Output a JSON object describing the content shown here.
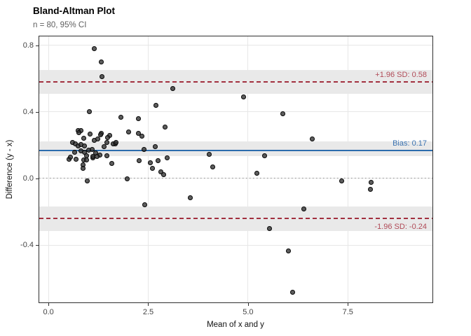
{
  "header": {
    "title": "Bland-Altman Plot",
    "subtitle": "n = 80, 95% CI"
  },
  "chart_data": {
    "type": "scatter",
    "title": "Bland-Altman Plot",
    "subtitle": "n = 80, 95% CI",
    "xlabel": "Mean of x and y",
    "ylabel": "Difference (y - x)",
    "xlim": [
      -0.23,
      9.62
    ],
    "ylim": [
      -0.745,
      0.854
    ],
    "grid": true,
    "xticks": {
      "values": [
        0,
        2.5,
        5,
        7.5
      ],
      "labels": [
        "0.0",
        "2.5",
        "5.0",
        "7.5"
      ]
    },
    "yticks": {
      "values": [
        -0.4,
        0,
        0.4,
        0.8
      ],
      "labels": [
        "-0.4",
        "0.0",
        "0.4",
        "0.8"
      ]
    },
    "zero_line": {
      "value": 0,
      "style": "dotted",
      "color": "#8a8a8a"
    },
    "ci_band_color": "#e9e9e9",
    "point_color": "#303030",
    "reference_lines": [
      {
        "name": "upper_loa",
        "value": 0.58,
        "label": "+1.96 SD: 0.58",
        "style": "dashed",
        "color": "#A2303F",
        "label_color": "#B04A57",
        "ci": [
          0.51,
          0.65
        ],
        "label_position": "above"
      },
      {
        "name": "bias",
        "value": 0.17,
        "label": "Bias: 0.17",
        "style": "solid",
        "color": "#2B6CAD",
        "label_color": "#3A72B0",
        "ci": [
          0.134,
          0.222
        ],
        "label_position": "above"
      },
      {
        "name": "lower_loa",
        "value": -0.24,
        "label": "-1.96 SD: -0.24",
        "style": "dashed",
        "color": "#A2303F",
        "label_color": "#B04A57",
        "ci": [
          -0.314,
          -0.167
        ],
        "label_position": "below"
      }
    ],
    "points": [
      [
        1.14,
        0.78
      ],
      [
        1.32,
        0.7
      ],
      [
        1.35,
        0.61
      ],
      [
        3.11,
        0.54
      ],
      [
        4.88,
        0.49
      ],
      [
        2.7,
        0.44
      ],
      [
        1.02,
        0.4
      ],
      [
        5.87,
        0.39
      ],
      [
        1.82,
        0.37
      ],
      [
        2.26,
        0.36
      ],
      [
        2.93,
        0.31
      ],
      [
        0.74,
        0.29
      ],
      [
        0.82,
        0.29
      ],
      [
        2.0,
        0.28
      ],
      [
        2.26,
        0.27
      ],
      [
        1.32,
        0.27
      ],
      [
        1.05,
        0.265
      ],
      [
        1.3,
        0.264
      ],
      [
        2.35,
        0.255
      ],
      [
        1.54,
        0.26
      ],
      [
        0.76,
        0.275
      ],
      [
        0.88,
        0.243
      ],
      [
        1.49,
        0.244
      ],
      [
        1.14,
        0.23
      ],
      [
        1.23,
        0.238
      ],
      [
        0.6,
        0.218
      ],
      [
        0.68,
        0.209
      ],
      [
        0.74,
        0.197
      ],
      [
        0.81,
        0.205
      ],
      [
        0.91,
        0.197
      ],
      [
        1.46,
        0.218
      ],
      [
        1.68,
        0.209
      ],
      [
        1.63,
        0.21
      ],
      [
        0.82,
        0.167
      ],
      [
        0.91,
        0.159
      ],
      [
        1.0,
        0.172
      ],
      [
        1.09,
        0.176
      ],
      [
        0.65,
        0.159
      ],
      [
        1.18,
        0.155
      ],
      [
        1.28,
        0.142
      ],
      [
        0.95,
        0.138
      ],
      [
        1.46,
        0.138
      ],
      [
        0.51,
        0.117
      ],
      [
        0.7,
        0.117
      ],
      [
        0.88,
        0.113
      ],
      [
        1.12,
        0.126
      ],
      [
        0.86,
        0.083
      ],
      [
        1.58,
        0.092
      ],
      [
        2.4,
        0.176
      ],
      [
        2.67,
        0.192
      ],
      [
        2.98,
        0.126
      ],
      [
        2.28,
        0.109
      ],
      [
        2.56,
        0.096
      ],
      [
        2.74,
        0.109
      ],
      [
        6.61,
        0.238
      ],
      [
        4.02,
        0.146
      ],
      [
        5.42,
        0.138
      ],
      [
        4.11,
        0.071
      ],
      [
        2.61,
        0.059
      ],
      [
        2.81,
        0.038
      ],
      [
        2.89,
        0.025
      ],
      [
        0.86,
        0.059
      ],
      [
        0.98,
        -0.013
      ],
      [
        1.98,
        -0.004
      ],
      [
        5.23,
        0.033
      ],
      [
        3.56,
        -0.117
      ],
      [
        2.42,
        -0.159
      ],
      [
        6.39,
        -0.184
      ],
      [
        5.53,
        -0.301
      ],
      [
        6.02,
        -0.435
      ],
      [
        6.11,
        -0.682
      ],
      [
        7.35,
        -0.013
      ],
      [
        8.09,
        -0.025
      ],
      [
        8.07,
        -0.067
      ],
      [
        1.7,
        0.218
      ],
      [
        0.56,
        0.128
      ],
      [
        0.95,
        0.113
      ],
      [
        1.11,
        0.134
      ],
      [
        1.21,
        0.134
      ],
      [
        1.4,
        0.19
      ]
    ]
  }
}
